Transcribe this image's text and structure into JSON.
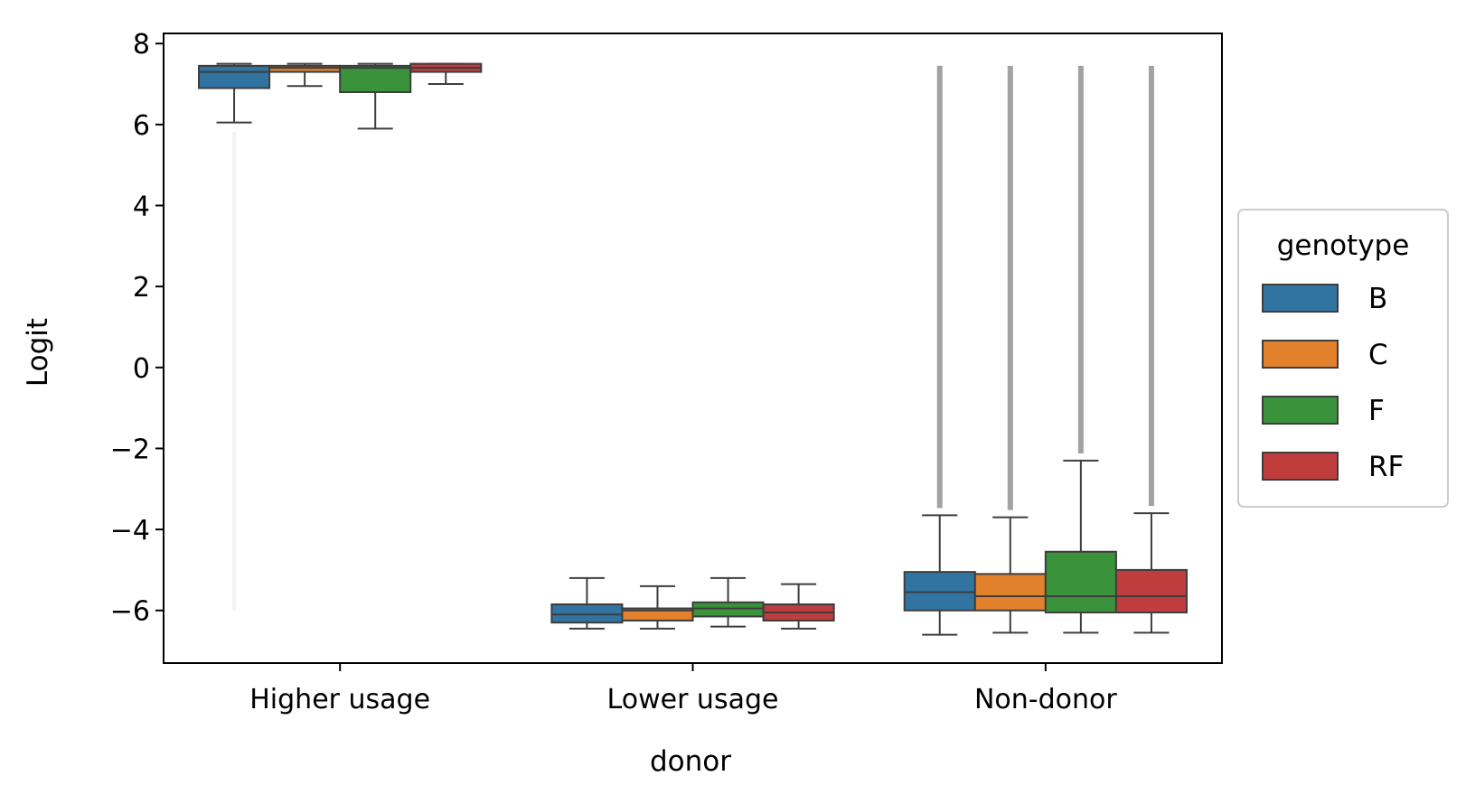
{
  "chart_data": {
    "type": "box",
    "xlabel": "donor",
    "ylabel": "Logit",
    "ylim": [
      -7.3,
      8.25
    ],
    "yticks": [
      8,
      6,
      4,
      2,
      0,
      -2,
      -4,
      -6
    ],
    "ytick_labels": [
      "8",
      "6",
      "4",
      "2",
      "0",
      "−2",
      "−4",
      "−6"
    ],
    "categories": [
      "Higher usage",
      "Lower usage",
      "Non-donor"
    ],
    "grid": false,
    "legend": {
      "title": "genotype",
      "placement": "center-right-outside",
      "entries": [
        {
          "name": "B",
          "color": "#3274a1"
        },
        {
          "name": "C",
          "color": "#e1812c"
        },
        {
          "name": "F",
          "color": "#3a923a"
        },
        {
          "name": "RF",
          "color": "#c03d3e"
        }
      ]
    },
    "series": [
      {
        "name": "B",
        "color": "#3274a1",
        "boxes": [
          {
            "category": "Higher usage",
            "whisker_low": 6.05,
            "q1": 6.9,
            "median": 7.3,
            "q3": 7.45,
            "whisker_high": 7.5,
            "outliers_dense_low": -6.0
          },
          {
            "category": "Lower usage",
            "whisker_low": -6.45,
            "q1": -6.3,
            "median": -6.1,
            "q3": -5.85,
            "whisker_high": -5.2
          },
          {
            "category": "Non-donor",
            "whisker_low": -6.6,
            "q1": -6.0,
            "median": -5.55,
            "q3": -5.05,
            "whisker_high": -3.65,
            "outliers_high": 7.45
          }
        ]
      },
      {
        "name": "C",
        "color": "#e1812c",
        "boxes": [
          {
            "category": "Higher usage",
            "whisker_low": 6.95,
            "q1": 7.3,
            "median": 7.4,
            "q3": 7.45,
            "whisker_high": 7.5
          },
          {
            "category": "Lower usage",
            "whisker_low": -6.45,
            "q1": -6.25,
            "median": -6.0,
            "q3": -5.95,
            "whisker_high": -5.4
          },
          {
            "category": "Non-donor",
            "whisker_low": -6.55,
            "q1": -6.0,
            "median": -5.65,
            "q3": -5.1,
            "whisker_high": -3.7,
            "outliers_high": 7.45
          }
        ]
      },
      {
        "name": "F",
        "color": "#3a923a",
        "boxes": [
          {
            "category": "Higher usage",
            "whisker_low": 5.9,
            "q1": 6.8,
            "median": 7.4,
            "q3": 7.45,
            "whisker_high": 7.5
          },
          {
            "category": "Lower usage",
            "whisker_low": -6.4,
            "q1": -6.15,
            "median": -5.95,
            "q3": -5.8,
            "whisker_high": -5.2
          },
          {
            "category": "Non-donor",
            "whisker_low": -6.55,
            "q1": -6.05,
            "median": -5.65,
            "q3": -4.55,
            "whisker_high": -2.3,
            "outliers_high": 7.45
          }
        ]
      },
      {
        "name": "RF",
        "color": "#c03d3e",
        "boxes": [
          {
            "category": "Higher usage",
            "whisker_low": 7.0,
            "q1": 7.3,
            "median": 7.4,
            "q3": 7.5,
            "whisker_high": 7.5
          },
          {
            "category": "Lower usage",
            "whisker_low": -6.45,
            "q1": -6.25,
            "median": -6.05,
            "q3": -5.85,
            "whisker_high": -5.35
          },
          {
            "category": "Non-donor",
            "whisker_low": -6.55,
            "q1": -6.05,
            "median": -5.65,
            "q3": -5.0,
            "whisker_high": -3.6,
            "outliers_high": 7.45
          }
        ]
      }
    ]
  }
}
